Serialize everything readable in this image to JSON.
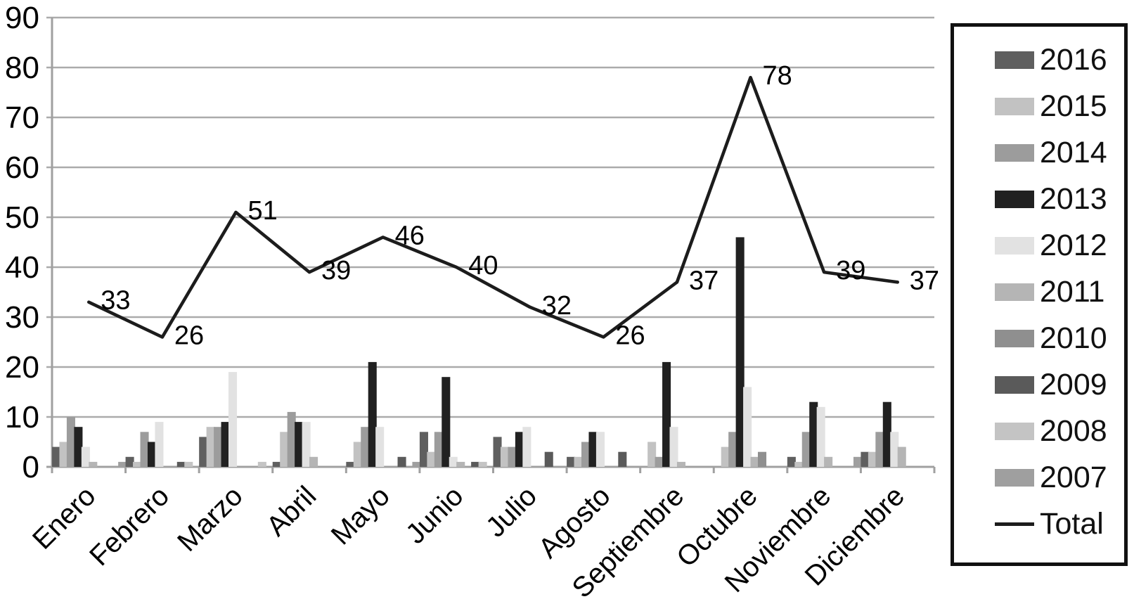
{
  "chart_data": {
    "type": "bar",
    "subtype": "grouped-bars-with-total-line",
    "title": "",
    "xlabel": "",
    "ylabel": "",
    "categories": [
      "Enero",
      "Febrero",
      "Marzo",
      "Abril",
      "Mayo",
      "Junio",
      "Julio",
      "Agosto",
      "Septiembre",
      "Octubre",
      "Noviembre",
      "Diciembre"
    ],
    "series": [
      {
        "name": "2016",
        "color": "#5f5f5f",
        "values": [
          4,
          2,
          6,
          1,
          1,
          7,
          6,
          2,
          0,
          0,
          2,
          3
        ]
      },
      {
        "name": "2015",
        "color": "#c2c2c2",
        "values": [
          5,
          1,
          8,
          7,
          5,
          3,
          4,
          2,
          5,
          4,
          1,
          3
        ]
      },
      {
        "name": "2014",
        "color": "#9c9c9c",
        "values": [
          10,
          7,
          8,
          11,
          8,
          7,
          4,
          5,
          2,
          7,
          7,
          7
        ]
      },
      {
        "name": "2013",
        "color": "#212121",
        "values": [
          8,
          5,
          9,
          9,
          21,
          18,
          7,
          7,
          21,
          46,
          13,
          13
        ]
      },
      {
        "name": "2012",
        "color": "#e2e2e2",
        "values": [
          4,
          9,
          19,
          9,
          8,
          2,
          8,
          7,
          8,
          16,
          12,
          7
        ]
      },
      {
        "name": "2011",
        "color": "#b5b5b5",
        "values": [
          1,
          0,
          0,
          2,
          0,
          1,
          0,
          0,
          1,
          2,
          2,
          4
        ]
      },
      {
        "name": "2010",
        "color": "#8f8f8f",
        "values": [
          0,
          0,
          0,
          0,
          0,
          0,
          0,
          0,
          0,
          3,
          0,
          0
        ]
      },
      {
        "name": "2009",
        "color": "#5a5a5a",
        "values": [
          0,
          1,
          0,
          0,
          2,
          1,
          3,
          3,
          0,
          0,
          0,
          0
        ]
      },
      {
        "name": "2008",
        "color": "#c4c4c4",
        "values": [
          0,
          1,
          1,
          0,
          0,
          1,
          0,
          0,
          0,
          0,
          0,
          0
        ]
      },
      {
        "name": "2007",
        "color": "#9f9f9f",
        "values": [
          1,
          0,
          0,
          0,
          1,
          0,
          0,
          0,
          0,
          0,
          2,
          0
        ]
      }
    ],
    "line_series": {
      "name": "Total",
      "color": "#1c1c1c",
      "values": [
        33,
        26,
        51,
        39,
        46,
        40,
        32,
        26,
        37,
        78,
        39,
        37
      ],
      "data_labels": [
        "33",
        "26",
        "51",
        "39",
        "46",
        "40",
        "32",
        "26",
        "37",
        "78",
        "39",
        "37"
      ]
    },
    "ylim": [
      0,
      90
    ],
    "ytick_step": 10,
    "ytick_labels": [
      "0",
      "10",
      "20",
      "30",
      "40",
      "50",
      "60",
      "70",
      "80",
      "90"
    ],
    "grid": true,
    "legend_position": "right",
    "grid_color": "#ababab",
    "axis_color": "#a0a0a0",
    "background": "#ffffff"
  },
  "legend": {
    "entries": [
      "2016",
      "2015",
      "2014",
      "2013",
      "2012",
      "2011",
      "2010",
      "2009",
      "2008",
      "2007",
      "Total"
    ]
  }
}
